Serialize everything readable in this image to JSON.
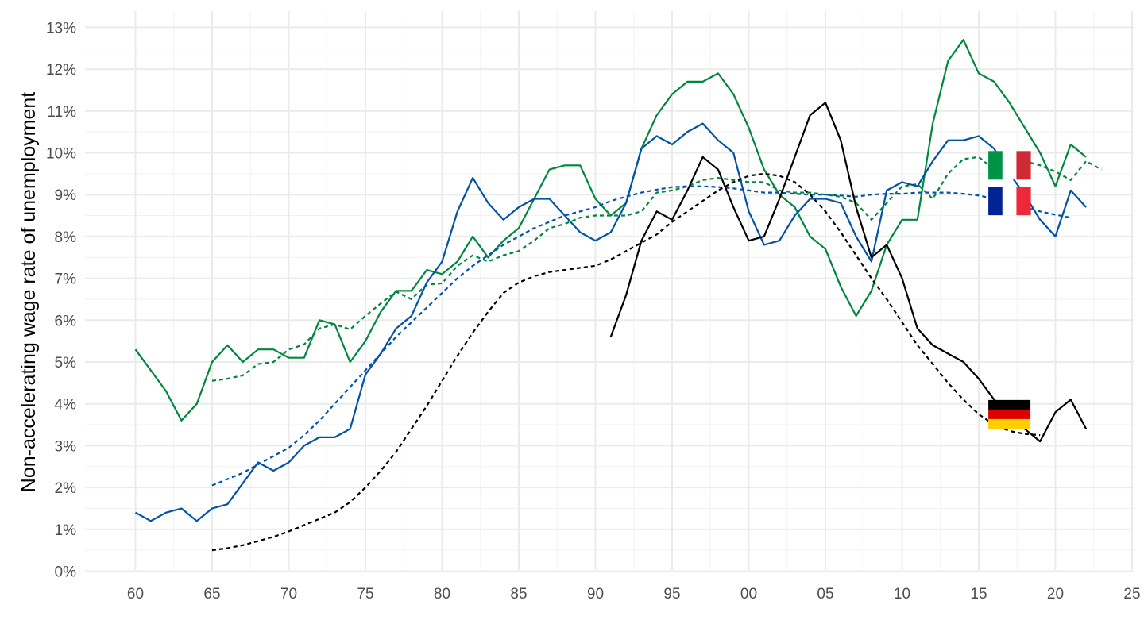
{
  "chart_data": {
    "type": "line",
    "title": "",
    "xlabel": "",
    "ylabel": "Non-accelerating wage rate of unemployment",
    "grid": true,
    "legend": "none",
    "xlim": [
      1960,
      2025
    ],
    "ylim": [
      0,
      13
    ],
    "x_ticks": [
      {
        "value": 1960,
        "label": "60"
      },
      {
        "value": 1965,
        "label": "65"
      },
      {
        "value": 1970,
        "label": "70"
      },
      {
        "value": 1975,
        "label": "75"
      },
      {
        "value": 1980,
        "label": "80"
      },
      {
        "value": 1985,
        "label": "85"
      },
      {
        "value": 1990,
        "label": "90"
      },
      {
        "value": 1995,
        "label": "95"
      },
      {
        "value": 2000,
        "label": "00"
      },
      {
        "value": 2005,
        "label": "05"
      },
      {
        "value": 2010,
        "label": "10"
      },
      {
        "value": 2015,
        "label": "15"
      },
      {
        "value": 2020,
        "label": "20"
      },
      {
        "value": 2025,
        "label": "25"
      }
    ],
    "y_ticks": [
      {
        "value": 0,
        "label": "0%"
      },
      {
        "value": 1,
        "label": "1%"
      },
      {
        "value": 2,
        "label": "2%"
      },
      {
        "value": 3,
        "label": "3%"
      },
      {
        "value": 4,
        "label": "4%"
      },
      {
        "value": 5,
        "label": "5%"
      },
      {
        "value": 6,
        "label": "6%"
      },
      {
        "value": 7,
        "label": "7%"
      },
      {
        "value": 8,
        "label": "8%"
      },
      {
        "value": 9,
        "label": "9%"
      },
      {
        "value": 10,
        "label": "10%"
      },
      {
        "value": 11,
        "label": "11%"
      },
      {
        "value": 12,
        "label": "12%"
      },
      {
        "value": 13,
        "label": "13%"
      }
    ],
    "series": [
      {
        "country": "italy",
        "style": "solid",
        "color": "#00873e",
        "x_start": 1960,
        "values": [
          5.3,
          4.8,
          4.3,
          3.6,
          4.0,
          5.0,
          5.4,
          5.0,
          5.3,
          5.3,
          5.1,
          5.1,
          6.0,
          5.9,
          5.0,
          5.5,
          6.2,
          6.7,
          6.7,
          7.2,
          7.1,
          7.4,
          8.0,
          7.5,
          7.9,
          8.2,
          8.9,
          9.6,
          9.7,
          9.7,
          8.9,
          8.5,
          8.8,
          10.1,
          10.9,
          11.4,
          11.7,
          11.7,
          11.9,
          11.4,
          10.6,
          9.6,
          9.0,
          8.7,
          8.0,
          7.7,
          6.8,
          6.1,
          6.7,
          7.8,
          8.4,
          8.4,
          10.7,
          12.2,
          12.7,
          11.9,
          11.7,
          11.2,
          10.6,
          10.0,
          9.2,
          10.2,
          9.9
        ]
      },
      {
        "country": "italy",
        "style": "dotted",
        "color": "#00873e",
        "x_start": 1965,
        "values": [
          4.55,
          4.6,
          4.68,
          4.95,
          5.0,
          5.3,
          5.42,
          5.8,
          5.9,
          5.78,
          6.1,
          6.4,
          6.68,
          6.5,
          6.85,
          6.88,
          7.3,
          7.55,
          7.4,
          7.55,
          7.65,
          7.9,
          8.2,
          8.3,
          8.45,
          8.5,
          8.5,
          8.5,
          8.6,
          9.05,
          9.1,
          9.2,
          9.35,
          9.4,
          9.35,
          9.3,
          9.3,
          9.1,
          9.05,
          9.05,
          9.0,
          8.95,
          8.8,
          8.4,
          8.8,
          9.2,
          9.25,
          8.9,
          9.5,
          9.85,
          9.9,
          9.6,
          9.65,
          9.8,
          9.7,
          9.55,
          9.35,
          9.8,
          9.6
        ]
      },
      {
        "country": "france",
        "style": "solid",
        "color": "#0053a6",
        "x_start": 1960,
        "values": [
          1.4,
          1.2,
          1.4,
          1.5,
          1.2,
          1.5,
          1.6,
          2.1,
          2.6,
          2.4,
          2.6,
          3.0,
          3.2,
          3.2,
          3.4,
          4.7,
          5.2,
          5.8,
          6.1,
          6.9,
          7.4,
          8.6,
          9.4,
          8.8,
          8.4,
          8.7,
          8.9,
          8.9,
          8.5,
          8.1,
          7.9,
          8.1,
          8.8,
          10.1,
          10.4,
          10.2,
          10.5,
          10.7,
          10.3,
          10.0,
          8.6,
          7.8,
          7.9,
          8.5,
          8.9,
          8.9,
          8.8,
          8.0,
          7.4,
          9.1,
          9.3,
          9.2,
          9.8,
          10.3,
          10.3,
          10.4,
          10.1,
          9.5,
          9.0,
          8.4,
          8.0,
          9.1,
          8.7
        ]
      },
      {
        "country": "france",
        "style": "dotted",
        "color": "#0053a6",
        "x_start": 1965,
        "values": [
          2.05,
          2.2,
          2.35,
          2.55,
          2.75,
          2.95,
          3.25,
          3.6,
          4.0,
          4.4,
          4.8,
          5.2,
          5.6,
          5.95,
          6.3,
          6.65,
          7.0,
          7.3,
          7.55,
          7.8,
          8.0,
          8.2,
          8.35,
          8.5,
          8.6,
          8.7,
          8.85,
          8.95,
          9.05,
          9.12,
          9.18,
          9.2,
          9.2,
          9.18,
          9.15,
          9.1,
          9.05,
          9.05,
          9.02,
          9.0,
          9.0,
          8.98,
          8.95,
          9.0,
          9.02,
          9.02,
          9.05,
          9.05,
          9.05,
          9.02,
          8.98,
          8.9,
          8.8,
          8.7,
          8.6,
          8.52,
          8.45
        ]
      },
      {
        "country": "germany",
        "style": "solid",
        "color": "#000000",
        "x_start": 1991,
        "values": [
          5.6,
          6.6,
          7.9,
          8.6,
          8.4,
          9.1,
          9.9,
          9.6,
          8.7,
          7.9,
          8.0,
          8.9,
          9.9,
          10.9,
          11.2,
          10.3,
          8.7,
          7.5,
          7.8,
          7.0,
          5.8,
          5.4,
          5.2,
          5.0,
          4.6,
          4.1,
          3.8,
          3.4,
          3.1,
          3.8,
          4.1,
          3.4
        ]
      },
      {
        "country": "germany",
        "style": "dotted",
        "color": "#000000",
        "x_start": 1965,
        "values": [
          0.5,
          0.55,
          0.62,
          0.72,
          0.82,
          0.95,
          1.1,
          1.25,
          1.4,
          1.65,
          2.0,
          2.4,
          2.85,
          3.4,
          3.95,
          4.55,
          5.15,
          5.7,
          6.2,
          6.65,
          6.9,
          7.05,
          7.15,
          7.2,
          7.25,
          7.3,
          7.45,
          7.65,
          7.85,
          8.05,
          8.35,
          8.6,
          8.85,
          9.1,
          9.3,
          9.45,
          9.5,
          9.45,
          9.3,
          9.0,
          8.6,
          8.1,
          7.55,
          7.0,
          6.5,
          5.95,
          5.4,
          4.95,
          4.5,
          4.1,
          3.75,
          3.5,
          3.35,
          3.28,
          3.25
        ]
      }
    ],
    "flags": [
      {
        "country": "italy",
        "x": 2017,
        "y": 9.7
      },
      {
        "country": "france",
        "x": 2017,
        "y": 8.85
      },
      {
        "country": "germany",
        "x": 2017,
        "y": 3.75
      }
    ]
  }
}
